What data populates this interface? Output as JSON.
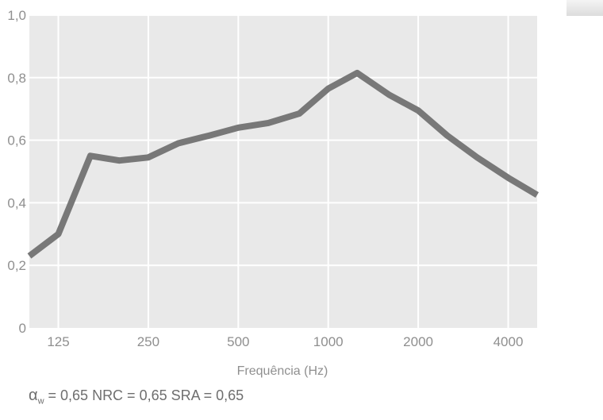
{
  "chart_data": {
    "type": "line",
    "title": "",
    "xlabel": "Frequência (Hz)",
    "ylabel": "",
    "x_scale": "log",
    "xlim": [
      100,
      5000
    ],
    "ylim": [
      0,
      1.0
    ],
    "grid": true,
    "x_ticks": [
      {
        "value": 125,
        "label": "125"
      },
      {
        "value": 250,
        "label": "250"
      },
      {
        "value": 500,
        "label": "500"
      },
      {
        "value": 1000,
        "label": "1000"
      },
      {
        "value": 2000,
        "label": "2000"
      },
      {
        "value": 4000,
        "label": "4000"
      }
    ],
    "y_ticks": [
      {
        "value": 0,
        "label": "0"
      },
      {
        "value": 0.2,
        "label": "0,2"
      },
      {
        "value": 0.4,
        "label": "0,4"
      },
      {
        "value": 0.6,
        "label": "0,6"
      },
      {
        "value": 0.8,
        "label": "0,8"
      },
      {
        "value": 1.0,
        "label": "1,0"
      }
    ],
    "series": [
      {
        "color": "#787878",
        "x": [
          100,
          125,
          160,
          200,
          250,
          315,
          400,
          500,
          630,
          800,
          1000,
          1250,
          1600,
          2000,
          2500,
          3150,
          4000,
          5000
        ],
        "values": [
          0.23,
          0.3,
          0.55,
          0.535,
          0.545,
          0.59,
          0.615,
          0.64,
          0.655,
          0.685,
          0.765,
          0.815,
          0.745,
          0.695,
          0.615,
          0.545,
          0.48,
          0.425
        ]
      }
    ]
  },
  "footer": {
    "alpha_symbol": "α",
    "alpha_subscript": "w",
    "text": " = 0,65  NRC = 0,65  SRA = 0,65"
  },
  "colors": {
    "plot_background": "#e9e9e9",
    "grid": "#ffffff",
    "text": "#8f8f8f"
  }
}
